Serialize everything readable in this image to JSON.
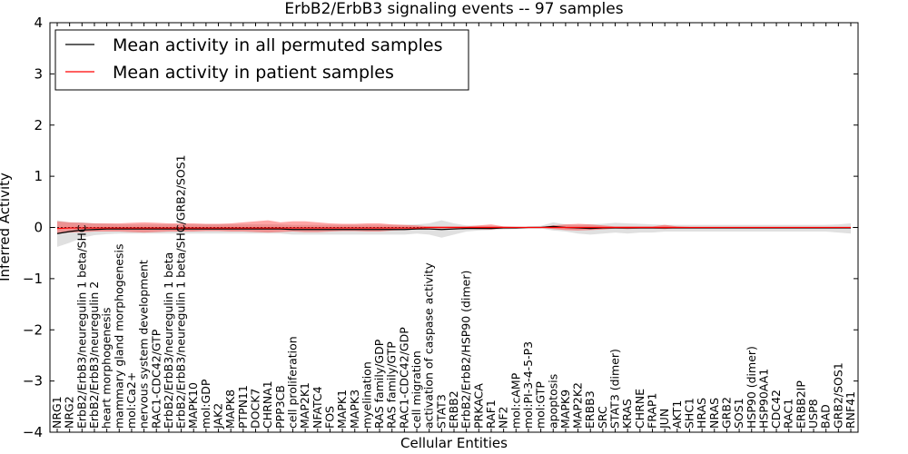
{
  "chart_data": {
    "type": "line",
    "title": "ErbB2/ErbB3 signaling events -- 97 samples",
    "xlabel": "Cellular Entities",
    "ylabel": "Inferred Activity",
    "ylim": [
      -4,
      4
    ],
    "yticks": [
      -4,
      -3,
      -2,
      -1,
      0,
      1,
      2,
      3,
      4
    ],
    "ytick_labels": [
      "−4",
      "−3",
      "−2",
      "−1",
      "0",
      "1",
      "2",
      "3",
      "4"
    ],
    "legend_position": "top-left",
    "categories": [
      "NRG1",
      "NRG2",
      "ErbB2/ErbB3/neuregulin 1 beta/SHC",
      "ErbB2/ErbB3/neuregulin 2",
      "heart morphogenesis",
      "mammary gland morphogenesis",
      "mol:Ca2+",
      "nervous system development",
      "RAC1-CDC42/GTP",
      "ErbB2/ErbB3/neuregulin 1 beta",
      "ErbB2/ErbB3/neuregulin 1 beta/SHC/GRB2/SOS1",
      "MAPK10",
      "mol:GDP",
      "JAK2",
      "MAPK8",
      "PTPN11",
      "DOCK7",
      "CHRNA1",
      "PPP3CB",
      "cell proliferation",
      "MAP2K1",
      "NFATC4",
      "FOS",
      "MAPK1",
      "MAPK3",
      "myelination",
      "RAS family/GDP",
      "RAS family/GTP",
      "RAC1-CDC42/GDP",
      "cell migration",
      "activation of caspase activity",
      "STAT3",
      "ERBB2",
      "ErbB2/ErbB2/HSP90 (dimer)",
      "PRKACA",
      "RAF1",
      "NF2",
      "mol:cAMP",
      "mol:PI-3-4-5-P3",
      "mol:GTP",
      "apoptosis",
      "MAPK9",
      "MAP2K2",
      "ERBB3",
      "SRC",
      "STAT3 (dimer)",
      "KRAS",
      "CHRNE",
      "FRAP1",
      "JUN",
      "AKT1",
      "SHC1",
      "HRAS",
      "NRAS",
      "GRB2",
      "SOS1",
      "HSP90 (dimer)",
      "HSP90AA1",
      "CDC42",
      "RAC1",
      "ERBB2IP",
      "USP8",
      "BAD",
      "GRB2/SOS1",
      "RNF41"
    ],
    "series": [
      {
        "name": "Mean activity in all permuted samples",
        "color": "#000000",
        "band_color": "#bbbbbb",
        "values": [
          -0.12,
          -0.08,
          -0.05,
          -0.04,
          -0.03,
          -0.03,
          -0.03,
          -0.03,
          -0.03,
          -0.03,
          -0.03,
          -0.03,
          -0.03,
          -0.03,
          -0.03,
          -0.03,
          -0.03,
          -0.03,
          -0.03,
          -0.04,
          -0.04,
          -0.04,
          -0.04,
          -0.04,
          -0.04,
          -0.04,
          -0.04,
          -0.04,
          -0.04,
          -0.03,
          -0.03,
          -0.04,
          -0.03,
          -0.02,
          -0.02,
          -0.02,
          -0.01,
          -0.01,
          0.0,
          0.0,
          0.02,
          0.0,
          -0.01,
          -0.02,
          -0.01,
          -0.01,
          -0.01,
          -0.01,
          -0.01,
          -0.01,
          -0.01,
          -0.01,
          -0.01,
          -0.01,
          -0.01,
          -0.01,
          -0.01,
          -0.01,
          -0.01,
          -0.01,
          -0.01,
          -0.01,
          -0.01,
          -0.01,
          -0.01
        ],
        "band_lower": [
          -0.38,
          -0.3,
          -0.2,
          -0.15,
          -0.13,
          -0.12,
          -0.12,
          -0.12,
          -0.12,
          -0.12,
          -0.12,
          -0.12,
          -0.12,
          -0.12,
          -0.12,
          -0.12,
          -0.12,
          -0.12,
          -0.12,
          -0.14,
          -0.14,
          -0.14,
          -0.14,
          -0.14,
          -0.14,
          -0.14,
          -0.14,
          -0.14,
          -0.14,
          -0.12,
          -0.14,
          -0.2,
          -0.14,
          -0.08,
          -0.06,
          -0.05,
          -0.04,
          -0.03,
          -0.02,
          -0.02,
          -0.06,
          -0.08,
          -0.12,
          -0.14,
          -0.12,
          -0.1,
          -0.12,
          -0.1,
          -0.1,
          -0.08,
          -0.08,
          -0.08,
          -0.08,
          -0.08,
          -0.08,
          -0.08,
          -0.08,
          -0.08,
          -0.08,
          -0.08,
          -0.08,
          -0.08,
          -0.08,
          -0.1,
          -0.12
        ],
        "band_upper": [
          0.14,
          0.1,
          0.1,
          0.08,
          0.07,
          0.06,
          0.06,
          0.06,
          0.06,
          0.06,
          0.06,
          0.06,
          0.06,
          0.06,
          0.06,
          0.06,
          0.06,
          0.06,
          0.06,
          0.05,
          0.05,
          0.05,
          0.05,
          0.05,
          0.05,
          0.05,
          0.05,
          0.05,
          0.05,
          0.06,
          0.08,
          0.14,
          0.08,
          0.04,
          0.03,
          0.03,
          0.02,
          0.02,
          0.02,
          0.03,
          0.1,
          0.06,
          0.05,
          0.06,
          0.07,
          0.09,
          0.08,
          0.07,
          0.06,
          0.05,
          0.05,
          0.05,
          0.05,
          0.05,
          0.05,
          0.05,
          0.05,
          0.05,
          0.05,
          0.05,
          0.05,
          0.05,
          0.05,
          0.06,
          0.08
        ]
      },
      {
        "name": "Mean activity in patient samples",
        "color": "#ff0000",
        "band_color": "#ff0000",
        "values": [
          -0.02,
          -0.01,
          -0.01,
          -0.01,
          -0.01,
          -0.01,
          -0.01,
          -0.01,
          -0.01,
          -0.01,
          -0.01,
          -0.01,
          -0.01,
          -0.01,
          -0.01,
          -0.01,
          -0.01,
          -0.01,
          -0.01,
          -0.01,
          -0.01,
          -0.01,
          -0.01,
          -0.01,
          -0.01,
          -0.01,
          -0.01,
          -0.01,
          -0.01,
          -0.01,
          0.0,
          0.0,
          0.0,
          0.0,
          0.0,
          0.0,
          0.0,
          0.0,
          0.0,
          0.0,
          0.0,
          0.0,
          0.0,
          0.0,
          0.0,
          0.0,
          0.0,
          0.0,
          0.0,
          0.0,
          0.0,
          0.0,
          0.0,
          0.0,
          0.0,
          0.0,
          0.0,
          0.0,
          0.0,
          0.0,
          0.0,
          0.0,
          0.0,
          0.0,
          0.0
        ],
        "band_lower": [
          -0.12,
          -0.1,
          -0.09,
          -0.08,
          -0.08,
          -0.08,
          -0.09,
          -0.1,
          -0.09,
          -0.08,
          -0.08,
          -0.08,
          -0.07,
          -0.07,
          -0.08,
          -0.08,
          -0.09,
          -0.1,
          -0.09,
          -0.08,
          -0.09,
          -0.09,
          -0.08,
          -0.07,
          -0.07,
          -0.08,
          -0.08,
          -0.06,
          -0.05,
          -0.04,
          -0.02,
          -0.02,
          -0.02,
          -0.02,
          -0.03,
          -0.04,
          -0.01,
          -0.01,
          -0.01,
          -0.01,
          -0.03,
          -0.05,
          -0.06,
          -0.05,
          -0.04,
          -0.02,
          -0.03,
          -0.02,
          -0.02,
          -0.03,
          -0.01,
          -0.01,
          -0.01,
          -0.01,
          -0.01,
          -0.01,
          -0.01,
          -0.01,
          -0.01,
          -0.01,
          -0.01,
          -0.01,
          -0.01,
          -0.01,
          -0.01
        ],
        "band_upper": [
          0.12,
          0.1,
          0.09,
          0.08,
          0.08,
          0.08,
          0.09,
          0.1,
          0.09,
          0.08,
          0.08,
          0.08,
          0.07,
          0.07,
          0.08,
          0.1,
          0.12,
          0.14,
          0.1,
          0.12,
          0.12,
          0.1,
          0.08,
          0.07,
          0.07,
          0.08,
          0.08,
          0.06,
          0.05,
          0.04,
          0.02,
          0.02,
          0.02,
          0.02,
          0.04,
          0.06,
          0.02,
          0.01,
          0.01,
          0.01,
          0.04,
          0.06,
          0.07,
          0.06,
          0.04,
          0.02,
          0.02,
          0.02,
          0.02,
          0.05,
          0.02,
          0.01,
          0.01,
          0.01,
          0.01,
          0.01,
          0.01,
          0.01,
          0.01,
          0.01,
          0.01,
          0.01,
          0.01,
          0.01,
          0.01
        ]
      }
    ]
  }
}
